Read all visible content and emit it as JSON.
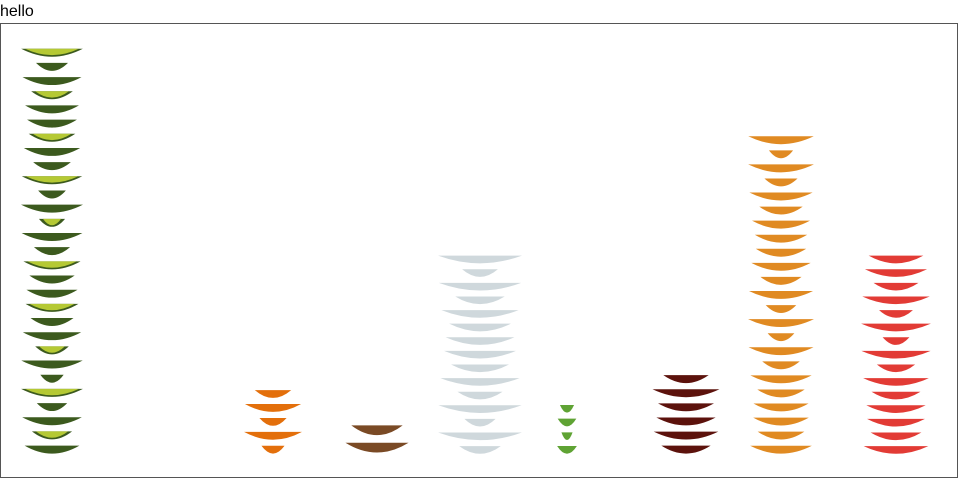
{
  "title": "hello",
  "chart_data": {
    "type": "bar",
    "title": "hello",
    "xlabel": "",
    "ylabel": "",
    "grid": false,
    "categories": [],
    "series": [
      {
        "icon": "avocado-icon",
        "color": "#3c5a1e",
        "value": 413
      },
      {
        "icon": "orange-slice-icon",
        "color": "#e36f0b",
        "value": 70
      },
      {
        "icon": "bread-icon",
        "color": "#7a4a25",
        "value": 35
      },
      {
        "icon": "teacup-icon",
        "color": "#cfd8dc",
        "value": 205
      },
      {
        "icon": "herb-icon",
        "color": "#5fa334",
        "value": 55
      },
      {
        "icon": "chocolate-icon",
        "color": "#5c120c",
        "value": 85
      },
      {
        "icon": "bun-icon",
        "color": "#e08a22",
        "value": 325
      },
      {
        "icon": "bowl-icon",
        "color": "#e23b35",
        "value": 205
      }
    ],
    "ylim": [
      0,
      420
    ]
  }
}
